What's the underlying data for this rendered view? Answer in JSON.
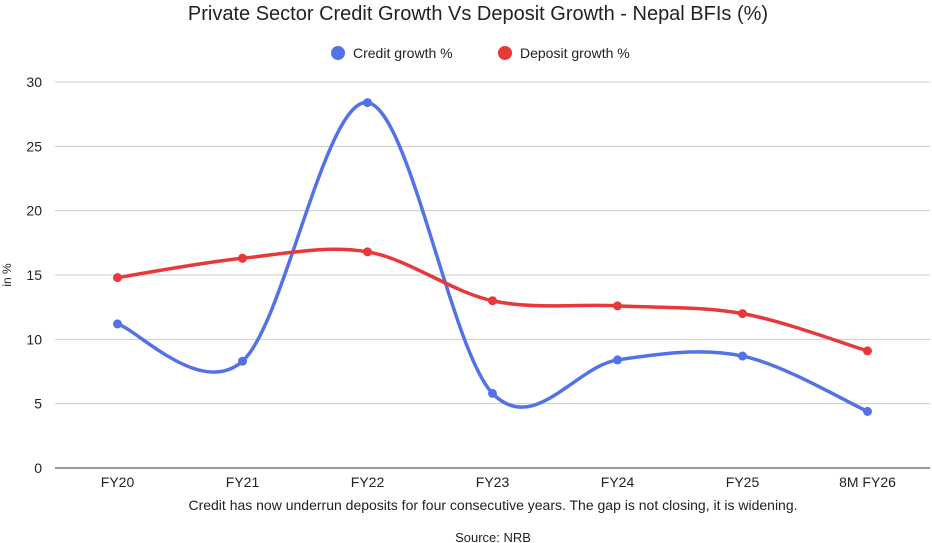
{
  "chart_data": {
    "type": "line",
    "title": "Private Sector Credit Growth Vs Deposit Growth - Nepal BFIs (%)",
    "xlabel": "Credit has now underrun deposits for four consecutive years. The gap is not closing, it is widening.",
    "ylabel": "in %",
    "source": "Source: NRB",
    "categories": [
      "FY20",
      "FY21",
      "FY22",
      "FY23",
      "FY24",
      "FY25",
      "8M FY26"
    ],
    "ylim": [
      0,
      30
    ],
    "yticks": [
      0,
      5,
      10,
      15,
      20,
      25,
      30
    ],
    "grid": true,
    "legend_position": "top-center",
    "series": [
      {
        "name": "Credit growth %",
        "color": "#5472e8",
        "values": [
          11.2,
          8.3,
          28.4,
          5.8,
          8.4,
          8.7,
          4.4
        ]
      },
      {
        "name": "Deposit growth %",
        "color": "#e8383a",
        "values": [
          14.8,
          16.3,
          16.8,
          13.0,
          12.6,
          12.0,
          9.1
        ]
      }
    ]
  }
}
